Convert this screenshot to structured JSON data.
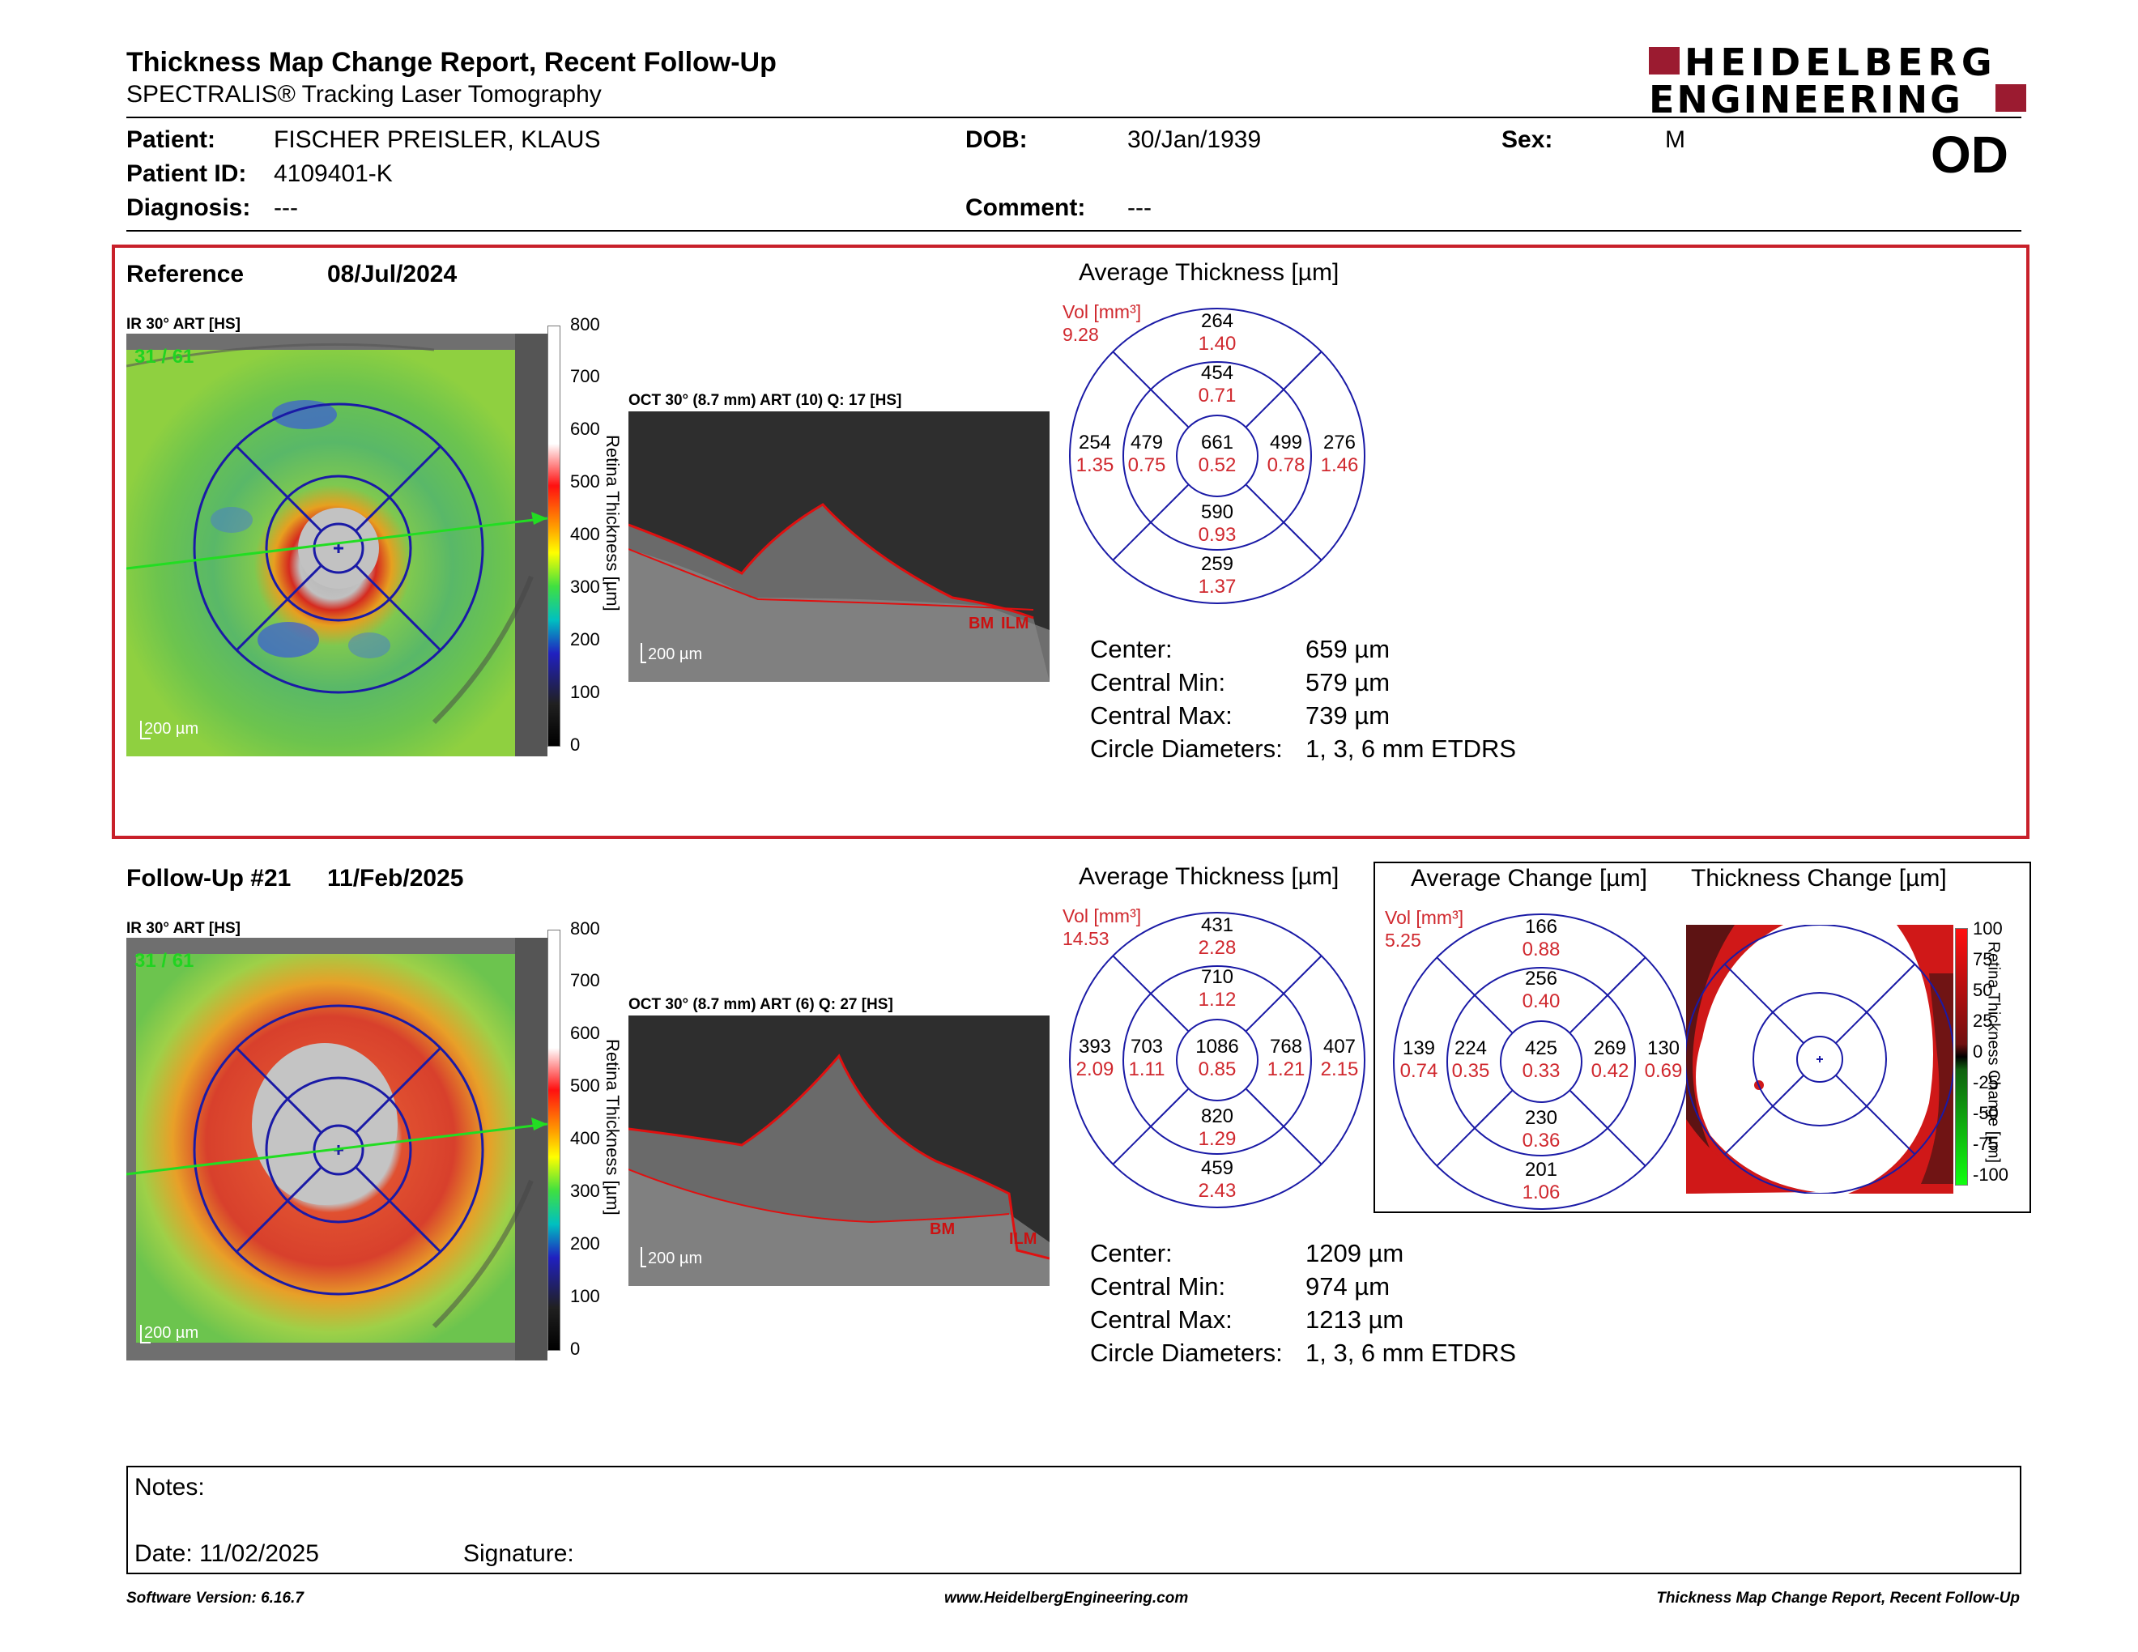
{
  "header": {
    "title": "Thickness Map Change Report, Recent Follow-Up",
    "subtitle": "SPECTRALIS® Tracking Laser Tomography",
    "logo_line1": "HEIDELBERG",
    "logo_line2": "ENGINEERING",
    "eye": "OD"
  },
  "patient": {
    "patient_label": "Patient:",
    "patient_value": "FISCHER PREISLER, KLAUS",
    "id_label": "Patient ID:",
    "id_value": "4109401-K",
    "diagnosis_label": "Diagnosis:",
    "diagnosis_value": "---",
    "dob_label": "DOB:",
    "dob_value": "30/Jan/1939",
    "comment_label": "Comment:",
    "comment_value": "---",
    "sex_label": "Sex:",
    "sex_value": "M"
  },
  "reference": {
    "label": "Reference",
    "date": "08/Jul/2024",
    "ir_caption": "IR 30° ART [HS]",
    "frame": "31 / 61",
    "oct_caption": "OCT 30° (8.7 mm) ART (10) Q: 17 [HS]",
    "scale_bar": "200 µm",
    "oct_scale_bar": "200 µm",
    "oct_labels": [
      "BM",
      "ILM"
    ],
    "colorbar_ticks": [
      "800",
      "700",
      "600",
      "500",
      "400",
      "300",
      "200",
      "100",
      "0"
    ],
    "colorbar_title": "Retina Thickness [µm]",
    "avg_title": "Average Thickness [µm]",
    "vol_label": "Vol [mm³]",
    "vol_value": "9.28",
    "sectors": {
      "outer_top": [
        "264",
        "1.40"
      ],
      "inner_top": [
        "454",
        "0.71"
      ],
      "outer_left": [
        "254",
        "1.35"
      ],
      "inner_left": [
        "479",
        "0.75"
      ],
      "center": [
        "661",
        "0.52"
      ],
      "inner_right": [
        "499",
        "0.78"
      ],
      "outer_right": [
        "276",
        "1.46"
      ],
      "inner_bottom": [
        "590",
        "0.93"
      ],
      "outer_bottom": [
        "259",
        "1.37"
      ]
    },
    "stats": [
      {
        "label": "Center:",
        "value": "659 µm"
      },
      {
        "label": "Central Min:",
        "value": "579 µm"
      },
      {
        "label": "Central Max:",
        "value": "739 µm"
      },
      {
        "label": "Circle Diameters:",
        "value": "1, 3, 6 mm ETDRS"
      }
    ]
  },
  "followup": {
    "label": "Follow-Up #21",
    "date": "11/Feb/2025",
    "ir_caption": "IR 30° ART [HS]",
    "frame": "31 / 61",
    "oct_caption": "OCT 30° (8.7 mm) ART (6) Q: 27 [HS]",
    "scale_bar": "200 µm",
    "oct_scale_bar": "200 µm",
    "oct_labels": [
      "BM",
      "ILM"
    ],
    "colorbar_ticks": [
      "800",
      "700",
      "600",
      "500",
      "400",
      "300",
      "200",
      "100",
      "0"
    ],
    "colorbar_title": "Retina Thickness [µm]",
    "avg_title": "Average Thickness [µm]",
    "vol_label": "Vol [mm³]",
    "vol_value": "14.53",
    "sectors": {
      "outer_top": [
        "431",
        "2.28"
      ],
      "inner_top": [
        "710",
        "1.12"
      ],
      "outer_left": [
        "393",
        "2.09"
      ],
      "inner_left": [
        "703",
        "1.11"
      ],
      "center": [
        "1086",
        "0.85"
      ],
      "inner_right": [
        "768",
        "1.21"
      ],
      "outer_right": [
        "407",
        "2.15"
      ],
      "inner_bottom": [
        "820",
        "1.29"
      ],
      "outer_bottom": [
        "459",
        "2.43"
      ]
    },
    "stats": [
      {
        "label": "Center:",
        "value": "1209 µm"
      },
      {
        "label": "Central Min:",
        "value": "974 µm"
      },
      {
        "label": "Central Max:",
        "value": "1213 µm"
      },
      {
        "label": "Circle Diameters:",
        "value": "1, 3, 6 mm ETDRS"
      }
    ]
  },
  "change": {
    "avg_title": "Average Change [µm]",
    "map_title": "Thickness Change [µm]",
    "vol_label": "Vol [mm³]",
    "vol_value": "5.25",
    "sectors": {
      "outer_top": [
        "166",
        "0.88"
      ],
      "inner_top": [
        "256",
        "0.40"
      ],
      "outer_left": [
        "139",
        "0.74"
      ],
      "inner_left": [
        "224",
        "0.35"
      ],
      "center": [
        "425",
        "0.33"
      ],
      "inner_right": [
        "269",
        "0.42"
      ],
      "outer_right": [
        "130",
        "0.69"
      ],
      "inner_bottom": [
        "230",
        "0.36"
      ],
      "outer_bottom": [
        "201",
        "1.06"
      ]
    },
    "colorbar_ticks": [
      "100",
      "75",
      "50",
      "25",
      "0",
      "-25",
      "-50",
      "-75",
      "-100"
    ],
    "colorbar_title": "Retina Thickness Change [µm]"
  },
  "notes": {
    "notes_label": "Notes:",
    "date_label": "Date: 11/02/2025",
    "signature_label": "Signature:"
  },
  "footer": {
    "software": "Software Version: 6.16.7",
    "url": "www.HeidelbergEngineering.com",
    "report": "Thickness Map Change Report, Recent Follow-Up"
  },
  "colors": {
    "accent_red": "#c8202a",
    "circle_blue": "#1a1aa6",
    "vol_red": "#d0282e"
  }
}
